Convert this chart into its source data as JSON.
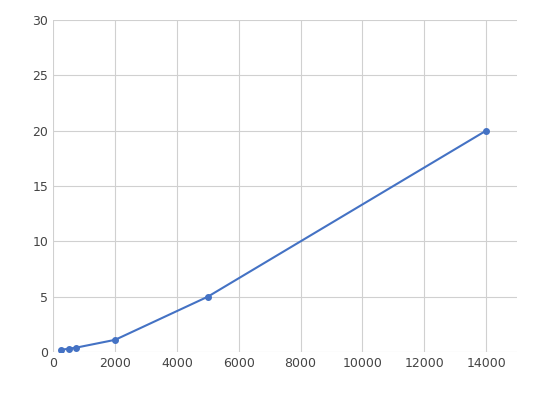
{
  "x": [
    250,
    500,
    750,
    2000,
    5000,
    14000
  ],
  "y": [
    0.2,
    0.3,
    0.4,
    1.1,
    5.0,
    20.0
  ],
  "line_color": "#4472c4",
  "marker_color": "#4472c4",
  "marker_size": 4,
  "line_width": 1.5,
  "xlim": [
    0,
    15000
  ],
  "ylim": [
    0,
    30
  ],
  "xticks": [
    0,
    2000,
    4000,
    6000,
    8000,
    10000,
    12000,
    14000
  ],
  "yticks": [
    0,
    5,
    10,
    15,
    20,
    25,
    30
  ],
  "grid_color": "#d0d0d0",
  "background_color": "#ffffff"
}
